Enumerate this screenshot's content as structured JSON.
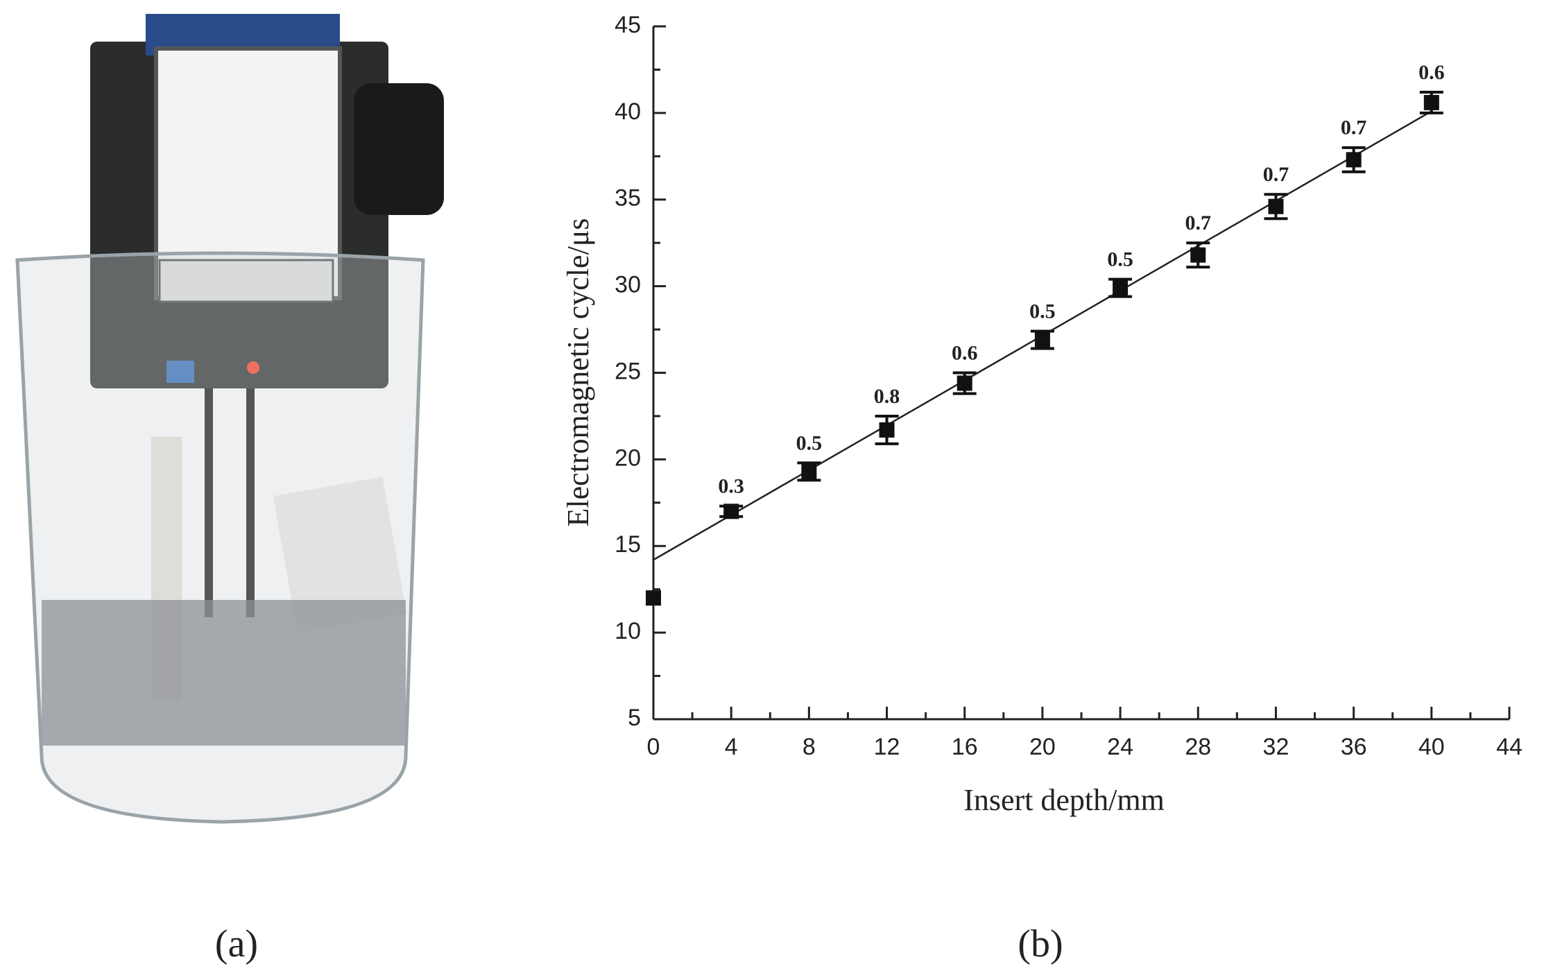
{
  "panel_labels": [
    "(a)",
    "(b)"
  ],
  "chart_data": {
    "type": "scatter",
    "xlabel": "Insert depth/mm",
    "ylabel": "Electromagnetic cycle/μs",
    "x": [
      0,
      4,
      8,
      12,
      16,
      20,
      24,
      28,
      32,
      36,
      40
    ],
    "values": [
      12,
      17,
      19.3,
      21.7,
      24.4,
      26.9,
      29.9,
      31.8,
      34.6,
      37.3,
      40.6
    ],
    "errors": [
      null,
      0.3,
      0.5,
      0.8,
      0.6,
      0.5,
      0.5,
      0.7,
      0.7,
      0.7,
      0.6
    ],
    "color": "#111111",
    "fit_line": {
      "x": [
        0,
        40
      ],
      "values": [
        14.2,
        40.1
      ]
    },
    "xlim": [
      0,
      44
    ],
    "xticks": [
      0,
      4,
      8,
      12,
      16,
      20,
      24,
      28,
      32,
      36,
      40,
      44
    ],
    "xminorticks": [
      2,
      6,
      10,
      14,
      18,
      22,
      26,
      30,
      34,
      38,
      42
    ],
    "ylim": [
      5,
      45
    ],
    "yticks": [
      5,
      10,
      15,
      20,
      25,
      30,
      35,
      40,
      45
    ],
    "yminorticks": [
      7.5,
      12.5,
      17.5,
      22.5,
      27.5,
      32.5,
      37.5,
      42.5
    ],
    "grid": false
  }
}
